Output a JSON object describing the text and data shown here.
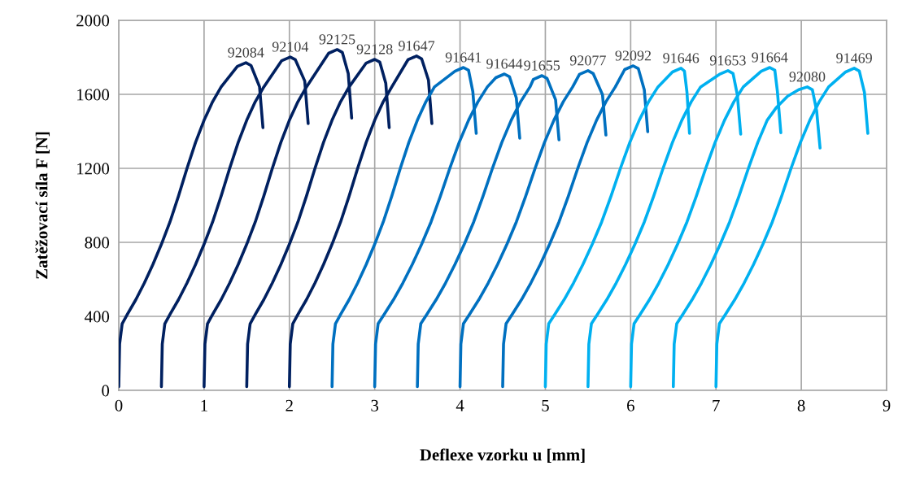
{
  "chart_data": {
    "type": "line",
    "xlabel": "Deflexe vzorku u [mm]",
    "ylabel": "Zatěžovací síla F [N]",
    "xlim": [
      0,
      9
    ],
    "xticks": [
      0,
      1,
      2,
      3,
      4,
      5,
      6,
      7,
      8,
      9
    ],
    "ylim": [
      0,
      2000
    ],
    "yticks": [
      0,
      400,
      800,
      1200,
      1600,
      2000
    ],
    "grid": true,
    "legend": false,
    "marker": "none",
    "line_style": "solid",
    "series": [
      {
        "name": "92084",
        "color": "#002060",
        "x": [
          0,
          0.01,
          0.04,
          0.1,
          0.2,
          0.3,
          0.4,
          0.5,
          0.6,
          0.7,
          0.8,
          0.9,
          1.0,
          1.1,
          1.2,
          1.39,
          1.49,
          1.55,
          1.65,
          1.69
        ],
        "values": [
          20,
          250,
          360,
          410,
          490,
          580,
          680,
          790,
          910,
          1050,
          1200,
          1340,
          1460,
          1560,
          1640,
          1751,
          1771,
          1756,
          1641,
          1420
        ]
      },
      {
        "name": "92104",
        "color": "#002060",
        "x": [
          0.5,
          0.51,
          0.54,
          0.6,
          0.7,
          0.8,
          0.9,
          1.0,
          1.1,
          1.2,
          1.3,
          1.4,
          1.5,
          1.6,
          1.7,
          1.91,
          2.01,
          2.07,
          2.18,
          2.22
        ],
        "values": [
          20,
          250,
          360,
          410,
          490,
          580,
          680,
          790,
          910,
          1050,
          1200,
          1340,
          1460,
          1560,
          1640,
          1782,
          1802,
          1787,
          1672,
          1442
        ]
      },
      {
        "name": "92125",
        "color": "#002060",
        "x": [
          1.0,
          1.01,
          1.04,
          1.1,
          1.2,
          1.3,
          1.4,
          1.5,
          1.6,
          1.7,
          1.8,
          1.9,
          2.0,
          2.1,
          2.2,
          2.46,
          2.56,
          2.62,
          2.69,
          2.73
        ],
        "values": [
          20,
          250,
          360,
          410,
          490,
          580,
          680,
          790,
          910,
          1050,
          1200,
          1340,
          1460,
          1560,
          1640,
          1822,
          1842,
          1827,
          1712,
          1472
        ]
      },
      {
        "name": "92128",
        "color": "#002060",
        "x": [
          1.5,
          1.51,
          1.54,
          1.6,
          1.7,
          1.8,
          1.9,
          2.0,
          2.1,
          2.2,
          2.3,
          2.4,
          2.5,
          2.6,
          2.7,
          2.9,
          3.0,
          3.06,
          3.13,
          3.17
        ],
        "values": [
          20,
          250,
          360,
          410,
          490,
          580,
          680,
          790,
          910,
          1050,
          1200,
          1340,
          1460,
          1560,
          1640,
          1769,
          1789,
          1774,
          1659,
          1420
        ]
      },
      {
        "name": "91647",
        "color": "#002060",
        "x": [
          2.0,
          2.01,
          2.04,
          2.1,
          2.2,
          2.3,
          2.4,
          2.5,
          2.6,
          2.7,
          2.8,
          2.9,
          3.0,
          3.1,
          3.2,
          3.39,
          3.49,
          3.55,
          3.63,
          3.67
        ],
        "values": [
          20,
          250,
          360,
          410,
          490,
          580,
          680,
          790,
          910,
          1050,
          1200,
          1340,
          1460,
          1560,
          1640,
          1787,
          1807,
          1792,
          1677,
          1442
        ]
      },
      {
        "name": "91641",
        "color": "#0070c0",
        "x": [
          2.5,
          2.51,
          2.54,
          2.6,
          2.7,
          2.8,
          2.9,
          3.0,
          3.1,
          3.2,
          3.3,
          3.4,
          3.5,
          3.6,
          3.7,
          3.94,
          4.04,
          4.1,
          4.15,
          4.19
        ],
        "values": [
          20,
          250,
          360,
          410,
          490,
          580,
          680,
          790,
          910,
          1050,
          1200,
          1340,
          1460,
          1560,
          1640,
          1725,
          1745,
          1730,
          1615,
          1389
        ]
      },
      {
        "name": "91644",
        "color": "#0070c0",
        "x": [
          3.0,
          3.01,
          3.04,
          3.11,
          3.22,
          3.33,
          3.44,
          3.55,
          3.66,
          3.77,
          3.88,
          3.99,
          4.1,
          4.21,
          4.32,
          4.42,
          4.52,
          4.58,
          4.66,
          4.7
        ],
        "values": [
          20,
          250,
          360,
          410,
          490,
          580,
          680,
          790,
          910,
          1050,
          1200,
          1340,
          1460,
          1560,
          1640,
          1690,
          1710,
          1695,
          1580,
          1363
        ]
      },
      {
        "name": "91655",
        "color": "#0070c0",
        "x": [
          3.5,
          3.51,
          3.54,
          3.61,
          3.72,
          3.83,
          3.94,
          4.05,
          4.16,
          4.27,
          4.38,
          4.49,
          4.6,
          4.71,
          4.82,
          4.86,
          4.96,
          5.02,
          5.12,
          5.16
        ],
        "values": [
          20,
          250,
          360,
          410,
          490,
          580,
          680,
          790,
          910,
          1050,
          1200,
          1340,
          1460,
          1560,
          1640,
          1681,
          1701,
          1686,
          1571,
          1354
        ]
      },
      {
        "name": "92077",
        "color": "#0070c0",
        "x": [
          4.0,
          4.01,
          4.04,
          4.11,
          4.22,
          4.33,
          4.44,
          4.55,
          4.66,
          4.77,
          4.88,
          4.99,
          5.1,
          5.21,
          5.32,
          5.4,
          5.5,
          5.56,
          5.67,
          5.71
        ],
        "values": [
          20,
          250,
          360,
          410,
          490,
          580,
          680,
          790,
          910,
          1050,
          1200,
          1340,
          1460,
          1560,
          1640,
          1708,
          1728,
          1713,
          1598,
          1380
        ]
      },
      {
        "name": "92092",
        "color": "#0070c0",
        "x": [
          4.5,
          4.51,
          4.54,
          4.61,
          4.72,
          4.83,
          4.94,
          5.05,
          5.16,
          5.27,
          5.38,
          5.49,
          5.6,
          5.71,
          5.82,
          5.93,
          6.03,
          6.09,
          6.16,
          6.2
        ],
        "values": [
          20,
          250,
          360,
          410,
          490,
          580,
          680,
          790,
          910,
          1050,
          1200,
          1340,
          1460,
          1560,
          1640,
          1734,
          1754,
          1739,
          1624,
          1398
        ]
      },
      {
        "name": "91646",
        "color": "#00b0f0",
        "x": [
          5.0,
          5.01,
          5.04,
          5.11,
          5.22,
          5.33,
          5.44,
          5.55,
          5.66,
          5.77,
          5.88,
          5.99,
          6.1,
          6.21,
          6.32,
          6.49,
          6.59,
          6.63,
          6.66,
          6.69
        ],
        "values": [
          20,
          250,
          360,
          410,
          490,
          580,
          680,
          790,
          910,
          1050,
          1200,
          1340,
          1460,
          1560,
          1640,
          1721,
          1741,
          1726,
          1611,
          1389
        ]
      },
      {
        "name": "91653",
        "color": "#00b0f0",
        "x": [
          5.5,
          5.51,
          5.54,
          5.61,
          5.72,
          5.83,
          5.94,
          6.05,
          6.16,
          6.27,
          6.38,
          6.49,
          6.6,
          6.71,
          6.82,
          7.04,
          7.14,
          7.2,
          7.25,
          7.29
        ],
        "values": [
          20,
          250,
          360,
          410,
          490,
          580,
          680,
          790,
          910,
          1050,
          1200,
          1340,
          1460,
          1560,
          1640,
          1708,
          1728,
          1713,
          1598,
          1385
        ]
      },
      {
        "name": "91664",
        "color": "#00b0f0",
        "x": [
          6.0,
          6.01,
          6.04,
          6.11,
          6.22,
          6.33,
          6.44,
          6.55,
          6.66,
          6.77,
          6.88,
          6.99,
          7.1,
          7.21,
          7.32,
          7.53,
          7.63,
          7.69,
          7.72,
          7.76
        ],
        "values": [
          20,
          250,
          360,
          410,
          490,
          580,
          680,
          790,
          910,
          1050,
          1200,
          1340,
          1460,
          1560,
          1640,
          1725,
          1745,
          1730,
          1615,
          1393
        ]
      },
      {
        "name": "92080",
        "color": "#00b0f0",
        "x": [
          6.5,
          6.51,
          6.54,
          6.61,
          6.72,
          6.83,
          6.94,
          7.05,
          7.16,
          7.27,
          7.38,
          7.49,
          7.6,
          7.71,
          7.84,
          7.97,
          8.07,
          8.13,
          8.18,
          8.22
        ],
        "values": [
          20,
          250,
          360,
          410,
          490,
          580,
          680,
          790,
          910,
          1050,
          1200,
          1340,
          1460,
          1530,
          1590,
          1625,
          1640,
          1625,
          1510,
          1310
        ]
      },
      {
        "name": "91469",
        "color": "#00b0f0",
        "x": [
          7.0,
          7.01,
          7.04,
          7.11,
          7.22,
          7.33,
          7.44,
          7.55,
          7.66,
          7.77,
          7.88,
          7.99,
          8.1,
          8.21,
          8.32,
          8.52,
          8.62,
          8.68,
          8.74,
          8.78
        ],
        "values": [
          20,
          250,
          360,
          410,
          490,
          580,
          680,
          790,
          910,
          1050,
          1200,
          1340,
          1460,
          1560,
          1640,
          1721,
          1741,
          1726,
          1611,
          1389
        ]
      }
    ]
  }
}
